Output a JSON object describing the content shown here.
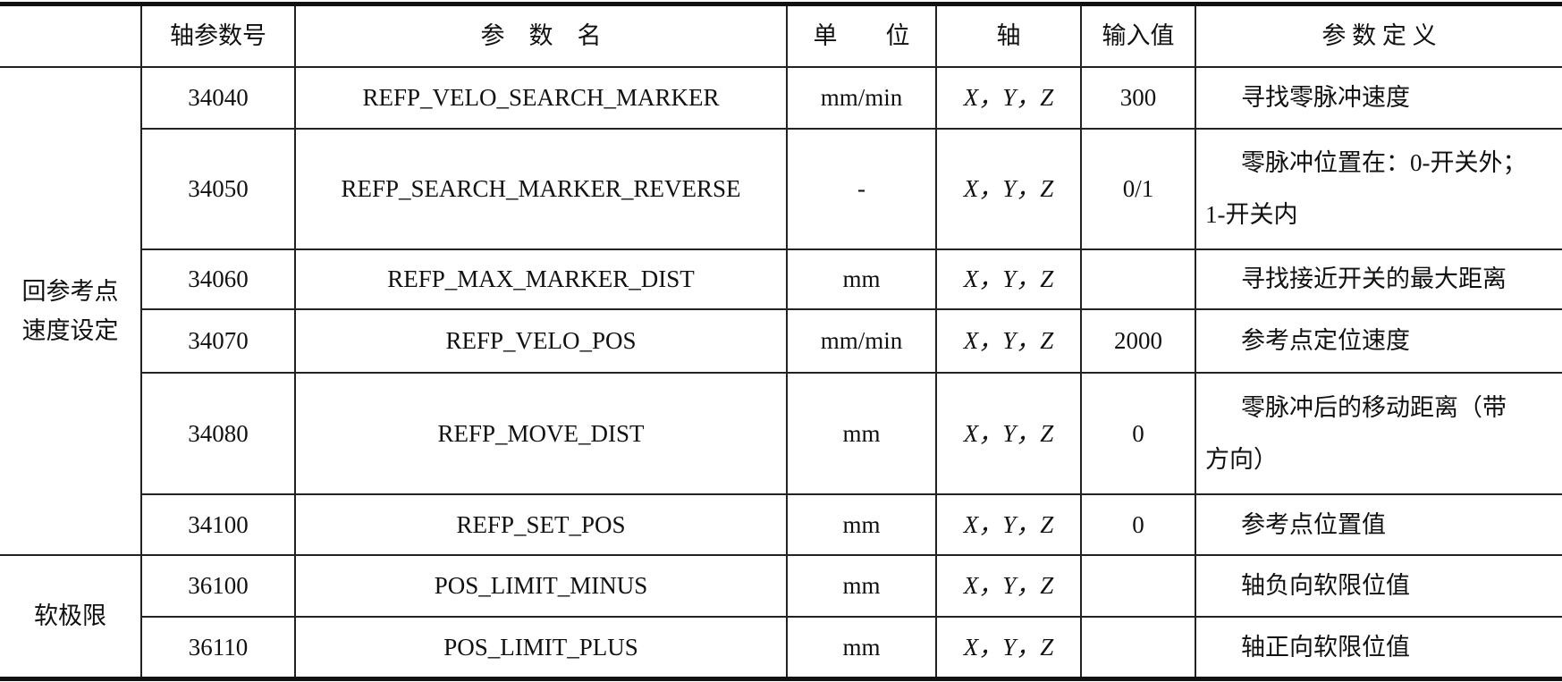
{
  "header": [
    "",
    "轴参数号",
    "参　数　名",
    "单　　位",
    "轴",
    "输入值",
    "参 数 定 义"
  ],
  "groups": [
    {
      "label": "回参考点速度设定",
      "rows": [
        {
          "no": "34040",
          "name": "REFP_VELO_SEARCH_MARKER",
          "unit": "mm/min",
          "axis": "X，Y，Z",
          "value": "300",
          "def1": "寻找零脉冲速度",
          "def2": ""
        },
        {
          "no": "34050",
          "name": "REFP_SEARCH_MARKER_REVERSE",
          "unit": "-",
          "axis": "X，Y，Z",
          "value": "0/1",
          "def1": "零脉冲位置在：0-开关外；",
          "def2": "1-开关内"
        },
        {
          "no": "34060",
          "name": "REFP_MAX_MARKER_DIST",
          "unit": "mm",
          "axis": "X，Y，Z",
          "value": "",
          "def1": "寻找接近开关的最大距离",
          "def2": ""
        },
        {
          "no": "34070",
          "name": "REFP_VELO_POS",
          "unit": "mm/min",
          "axis": "X，Y，Z",
          "value": "2000",
          "def1": "参考点定位速度",
          "def2": ""
        },
        {
          "no": "34080",
          "name": "REFP_MOVE_DIST",
          "unit": "mm",
          "axis": "X，Y，Z",
          "value": "0",
          "def1": "零脉冲后的移动距离（带",
          "def2": "方向）"
        },
        {
          "no": "34100",
          "name": "REFP_SET_POS",
          "unit": "mm",
          "axis": "X，Y，Z",
          "value": "0",
          "def1": "参考点位置值",
          "def2": ""
        }
      ]
    },
    {
      "label": "软极限",
      "rows": [
        {
          "no": "36100",
          "name": "POS_LIMIT_MINUS",
          "unit": "mm",
          "axis": "X，Y，Z",
          "value": "",
          "def1": "轴负向软限位值",
          "def2": ""
        },
        {
          "no": "36110",
          "name": "POS_LIMIT_PLUS",
          "unit": "mm",
          "axis": "X，Y，Z",
          "value": "",
          "def1": "轴正向软限位值",
          "def2": ""
        }
      ]
    }
  ]
}
